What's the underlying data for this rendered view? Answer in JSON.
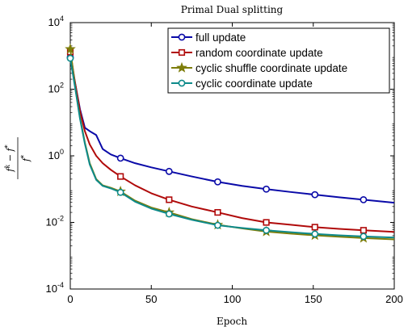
{
  "chart_data": {
    "type": "line",
    "title": "Primal Dual splitting",
    "xlabel": "Epoch",
    "ylabel": "(f^k − f*) / f*",
    "xlim": [
      0,
      200
    ],
    "ylim_log10": [
      -4,
      4
    ],
    "yscale": "log",
    "grid": false,
    "legend_position": "top-right",
    "x_ticks": [
      0,
      50,
      100,
      150,
      200
    ],
    "y_ticks_exponents": [
      -4,
      -2,
      0,
      2,
      4
    ],
    "series": [
      {
        "name": "full update",
        "color": "#0a0aa8",
        "marker": "circle",
        "x": [
          0,
          3,
          6,
          9,
          12,
          16,
          20,
          25,
          31,
          40,
          50,
          61,
          75,
          91,
          106,
          121,
          136,
          151,
          166,
          181,
          200
        ],
        "y": [
          900,
          150,
          25,
          7,
          5.5,
          4.2,
          1.6,
          1.1,
          0.85,
          0.6,
          0.45,
          0.34,
          0.24,
          0.165,
          0.125,
          0.1,
          0.082,
          0.068,
          0.057,
          0.048,
          0.039
        ],
        "marker_x": [
          0,
          31,
          61,
          91,
          121,
          151,
          181
        ]
      },
      {
        "name": "random coordinate update",
        "color": "#b00a0a",
        "marker": "square",
        "x": [
          0,
          3,
          6,
          9,
          12,
          16,
          20,
          25,
          31,
          40,
          50,
          61,
          75,
          91,
          106,
          121,
          136,
          151,
          166,
          181,
          200
        ],
        "y": [
          1300,
          150,
          22,
          5.5,
          2.2,
          1.0,
          0.6,
          0.38,
          0.24,
          0.13,
          0.075,
          0.048,
          0.03,
          0.02,
          0.0135,
          0.01,
          0.0085,
          0.0072,
          0.0064,
          0.0058,
          0.0052
        ],
        "marker_x": [
          0,
          31,
          61,
          91,
          121,
          151,
          181
        ]
      },
      {
        "name": "cyclic shuffle coordinate update",
        "color": "#7d7d0a",
        "marker": "star",
        "x": [
          0,
          3,
          6,
          9,
          12,
          16,
          20,
          25,
          31,
          40,
          50,
          61,
          75,
          91,
          106,
          121,
          136,
          151,
          166,
          181,
          200
        ],
        "y": [
          1600,
          120,
          14,
          2.5,
          0.6,
          0.2,
          0.13,
          0.11,
          0.085,
          0.045,
          0.028,
          0.02,
          0.0125,
          0.0085,
          0.0066,
          0.0053,
          0.0046,
          0.0041,
          0.0037,
          0.0034,
          0.0031
        ],
        "marker_x": [
          0,
          31,
          61,
          91,
          121,
          151,
          181
        ]
      },
      {
        "name": "cyclic coordinate update",
        "color": "#0d8a8a",
        "marker": "circle",
        "x": [
          0,
          3,
          6,
          9,
          12,
          16,
          20,
          25,
          31,
          40,
          50,
          61,
          75,
          91,
          106,
          121,
          136,
          151,
          166,
          181,
          200
        ],
        "y": [
          850,
          110,
          13,
          2.3,
          0.55,
          0.19,
          0.125,
          0.105,
          0.08,
          0.042,
          0.026,
          0.018,
          0.012,
          0.0082,
          0.0068,
          0.0058,
          0.0051,
          0.0045,
          0.0041,
          0.0038,
          0.0035
        ],
        "marker_x": [
          0,
          31,
          61,
          91,
          121,
          151,
          181
        ]
      }
    ]
  }
}
